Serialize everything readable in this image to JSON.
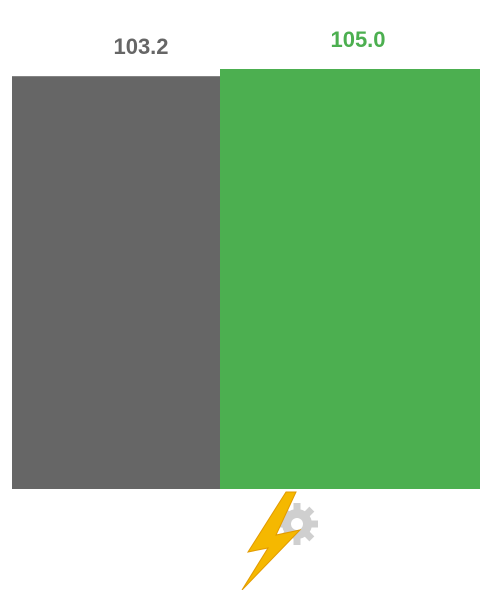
{
  "chart_data": {
    "type": "bar",
    "categories": [
      "",
      ""
    ],
    "values": [
      103.2,
      105.0
    ],
    "value_labels": [
      "103.2",
      "105.0"
    ],
    "colors": [
      "#666666",
      "#4caf50"
    ],
    "overlapping_bars": true,
    "grid": false,
    "legend": "none"
  },
  "icons": {
    "bottom_icon": "lightning-gear-icon",
    "bolt_color": "#f5b800",
    "gear_color": "#cfcfcf"
  }
}
